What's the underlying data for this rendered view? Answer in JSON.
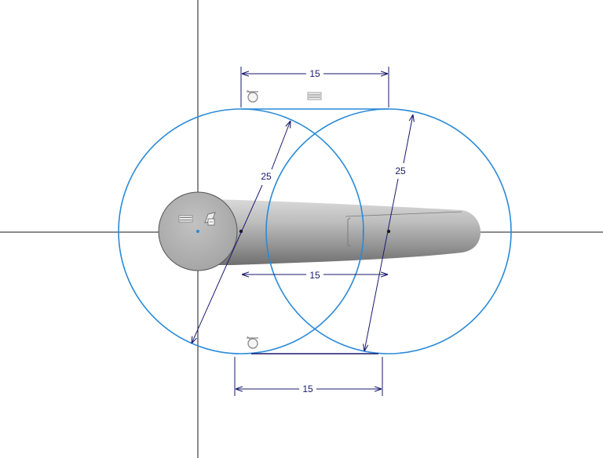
{
  "colors": {
    "background": "#ffffff",
    "axis": "#1a1a1a",
    "sketch_curve": "#2a8ad8",
    "dimension": "#1a1a6e",
    "solid_body": "#9e9e9e",
    "glyph": "#9a9a9a"
  },
  "dimensions": {
    "top_horizontal": "15",
    "left_diameter": "25",
    "right_diameter": "25",
    "middle_horizontal": "15",
    "bottom_horizontal": "15"
  },
  "constraint_glyphs": {
    "top_tangent": "tangent-constraint-icon",
    "top_parallel": "parallel-constraint-icon",
    "bottom_tangent": "tangent-constraint-icon",
    "hub_parallel": "parallel-constraint-icon",
    "hub_fix": "fix-constraint-icon"
  }
}
